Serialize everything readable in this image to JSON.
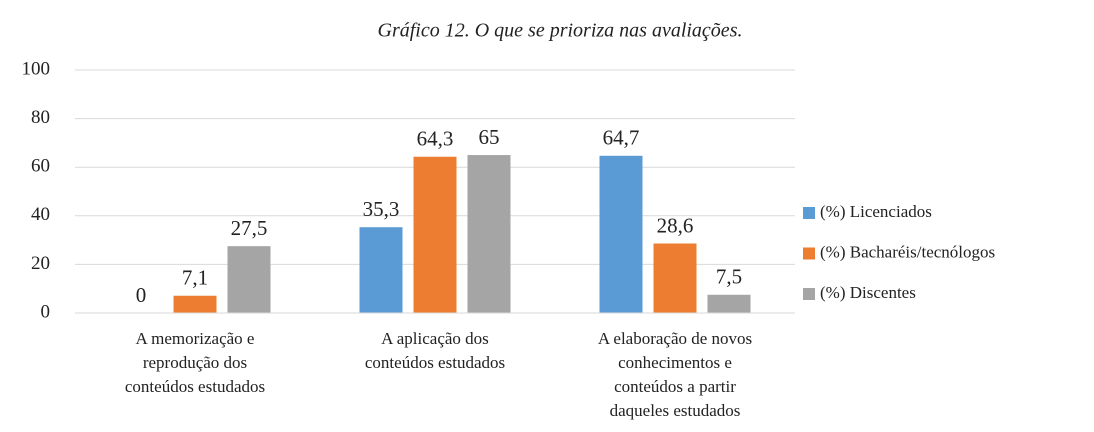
{
  "chart_data": {
    "type": "bar",
    "title": "Gráfico 12. O que se prioriza nas avaliações.",
    "categories": [
      "A memorização e reprodução dos conteúdos estudados",
      "A aplicação dos conteúdos estudados",
      "A elaboração de novos conhecimentos e conteúdos a partir daqueles estudados"
    ],
    "series": [
      {
        "name": "(%) Licenciados",
        "color": "#5b9bd5",
        "values": [
          0,
          35.3,
          64.7
        ],
        "value_labels": [
          "0",
          "35,3",
          "64,7"
        ]
      },
      {
        "name": "(%) Bacharéis/tecnólogos",
        "color": "#ed7d31",
        "values": [
          7.1,
          64.3,
          28.6
        ],
        "value_labels": [
          "7,1",
          "64,3",
          "28,6"
        ]
      },
      {
        "name": "(%) Discentes",
        "color": "#a5a5a5",
        "values": [
          27.5,
          65,
          7.5
        ],
        "value_labels": [
          "27,5",
          "65",
          "7,5"
        ]
      }
    ],
    "ylim": [
      0,
      100
    ],
    "yticks": [
      0,
      20,
      40,
      60,
      80,
      100
    ],
    "grid": true,
    "legend": "right"
  }
}
